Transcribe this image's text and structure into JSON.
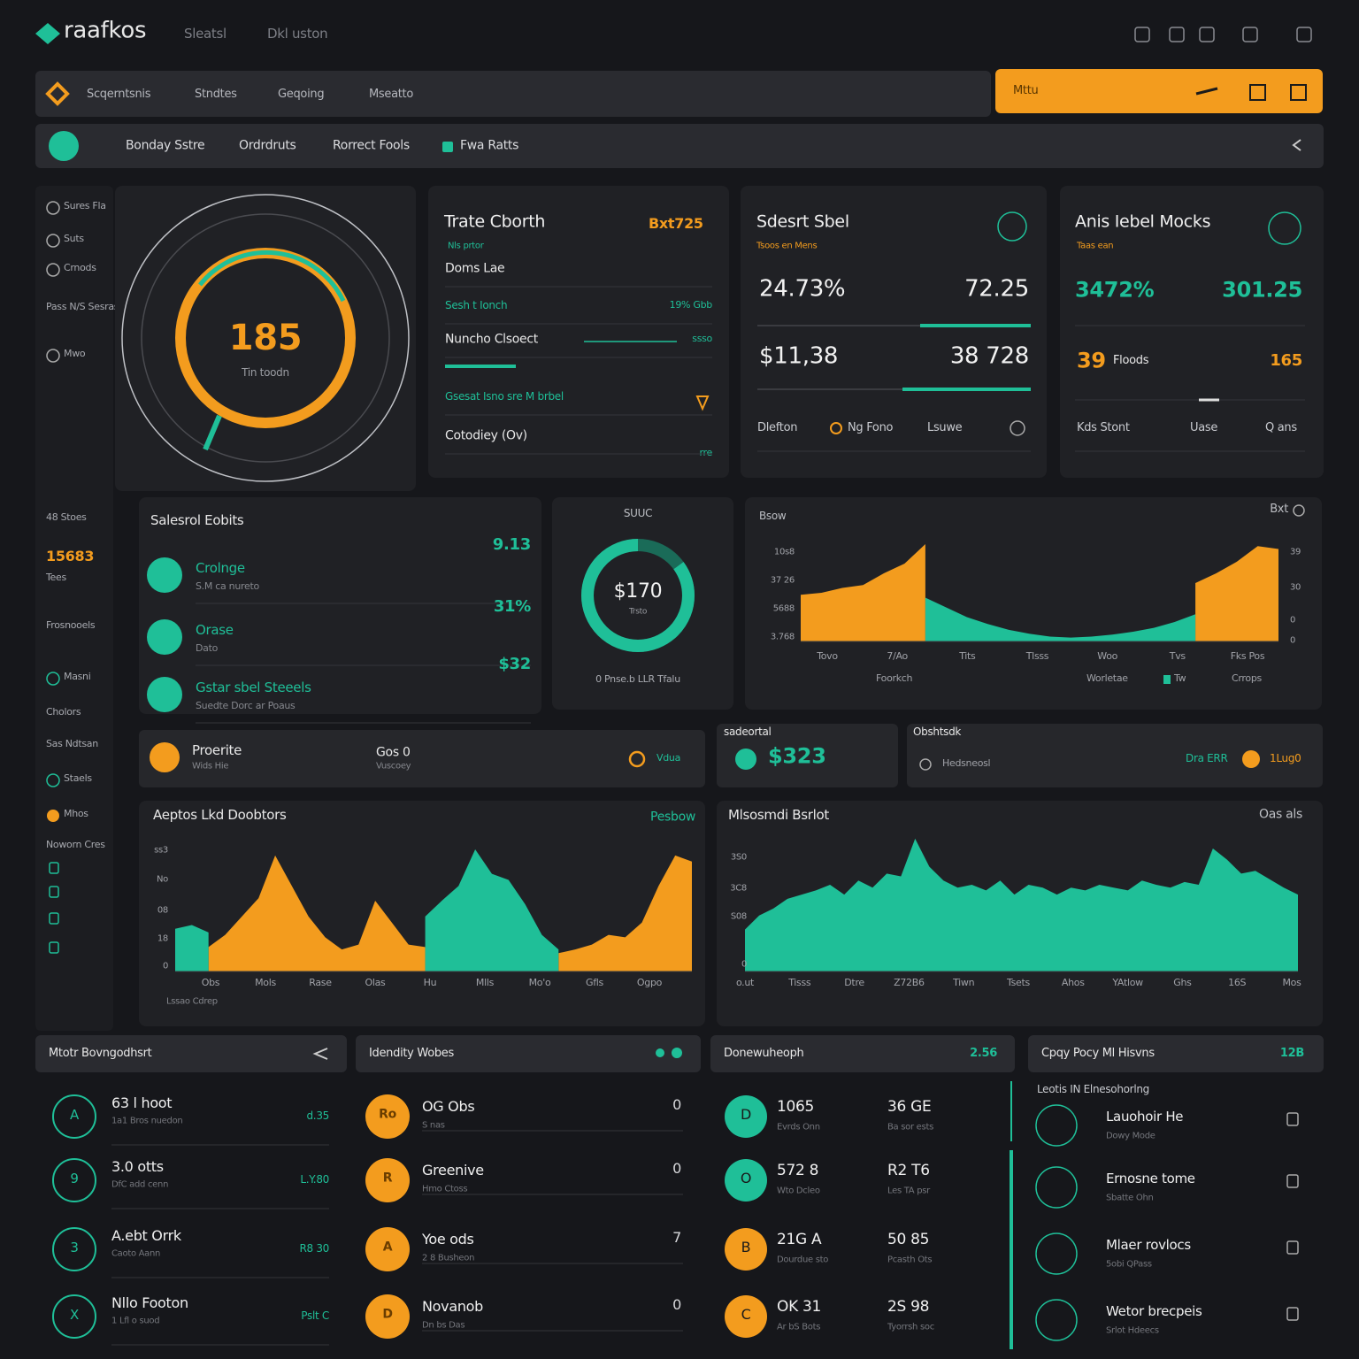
{
  "header": {
    "brand": "raafkos",
    "nav": [
      "Sleatsl",
      "Dkl uston"
    ]
  },
  "toolbar": {
    "items": [
      "Scqerntsnis",
      "Stndtes",
      "Geqoing",
      "Mseatto"
    ],
    "highlight": "Mttu"
  },
  "subnav": {
    "items": [
      "Bonday Sstre",
      "Ordrdruts",
      "Rorrect Fools",
      "Fwa Ratts"
    ]
  },
  "sidebar": {
    "items": [
      "Sures Fla",
      "Suts",
      "Crnods",
      "Pass N/S Sesras",
      "Mwo",
      "48 Stoes",
      "15683",
      "Tees",
      "Frosnooels",
      "Masni",
      "Cholors",
      "Sas Ndtsan",
      "Staels",
      "Mhos",
      "Noworn Cres"
    ]
  },
  "gauge": {
    "value": "185",
    "caption": "Tin toodn"
  },
  "trade_card": {
    "title": "Trate Cborth",
    "badge": "Bxt725",
    "subtitle": "Nls prtor",
    "rows": [
      {
        "label": "Doms Lae"
      },
      {
        "label": "Sesh t Ionch",
        "value": "19% Gbb"
      },
      {
        "label": "Nuncho Clsoect",
        "value": "ssso"
      },
      {
        "label": "Gsesat Isno sre M brbel"
      },
      {
        "label": "Cotodiey (Ov)",
        "value": "rre"
      }
    ]
  },
  "select_card": {
    "title": "Sdesrt Sbel",
    "subtitle": "Tsoos en Mens",
    "metrics": [
      [
        "24.73%",
        "72.25"
      ],
      [
        "$11,38",
        "38 728"
      ]
    ],
    "footer": [
      "Dlefton",
      "Ng Fono",
      "Lsuwe"
    ]
  },
  "mocks_card": {
    "title": "Anis Iebel Mocks",
    "subtitle": "Taas ean",
    "metrics": [
      "3472%",
      "301.25"
    ],
    "row": [
      "39",
      "Floods",
      "165"
    ],
    "footer": [
      "Kds Stont",
      "Uase",
      "Q ans"
    ]
  },
  "sales": {
    "title": "Salesrol Eobits",
    "items": [
      {
        "label": "Crolnge",
        "sub": "S.M ca nureto",
        "value": "9.13"
      },
      {
        "label": "Orase",
        "sub": "Dato",
        "value": "31%"
      },
      {
        "label": "Gstar sbel Steeels",
        "sub": "Suedte Dorc ar Poaus",
        "value": "$32"
      }
    ]
  },
  "donut": {
    "title": "SUUC",
    "center": "$170",
    "sub": "Trsto",
    "foot": "0 Pnse.b LLR Tfalu",
    "ring_value": 85,
    "ring_lim": [
      0,
      100
    ]
  },
  "chart_a": {
    "type": "area",
    "title": "Bsow",
    "corner": "Bxt",
    "y_labels": [
      "10s8",
      "37 26",
      "5688",
      "3.768"
    ],
    "right_labels": [
      "39",
      "30",
      "0",
      "0"
    ],
    "x_labels": [
      "Tovo",
      "7/Ao",
      "Tits",
      "Tlsss",
      "Woo",
      "Tvs",
      "Fks Pos"
    ],
    "legend": [
      "Foorkch",
      "Worletae",
      "Tw",
      "Crrops"
    ],
    "ylim": [
      0,
      100
    ],
    "series": [
      {
        "color": "#f39c1e",
        "values": [
          48,
          50,
          55,
          58,
          70,
          80,
          100,
          null,
          null,
          null,
          null,
          null,
          null,
          null,
          null,
          null,
          null,
          null,
          null,
          60,
          70,
          82,
          98,
          95
        ]
      },
      {
        "color": "#1fbf98",
        "values": [
          null,
          null,
          null,
          null,
          null,
          null,
          45,
          35,
          25,
          18,
          12,
          8,
          5,
          4,
          5,
          7,
          10,
          14,
          20,
          28,
          null,
          null,
          null,
          null
        ]
      }
    ]
  },
  "strip": {
    "left": {
      "title": "Proerite",
      "sub": "Wids Hie",
      "mid": "Gos 0",
      "mid_sub": "Vuscoey",
      "right": "Vdua"
    },
    "mid": {
      "title": "sadeortal",
      "value": "$323"
    },
    "right": {
      "title": "Obshtsdk",
      "sub": "Hedsneosl",
      "a": "Dra ERR",
      "b": "1Lug0"
    }
  },
  "chart_b": {
    "type": "area",
    "title": "Aeptos Lkd Doobtors",
    "corner": "Pesbow",
    "y_labels": [
      "ss3",
      "No",
      "08",
      "18",
      "0"
    ],
    "x_labels": [
      "Obs",
      "Mols",
      "Rase",
      "Olas",
      "Hu",
      "Mlls",
      "Mo'o",
      "Gfls",
      "Ogpo"
    ],
    "footer": "Lssao Cdrep",
    "ylim": [
      0,
      100
    ],
    "series": [
      {
        "color": "#f39c1e",
        "values": [
          null,
          null,
          20,
          30,
          45,
          60,
          95,
          70,
          45,
          28,
          18,
          22,
          58,
          40,
          22,
          20,
          null,
          null,
          null,
          null,
          null,
          null,
          null,
          15,
          18,
          22,
          30,
          28,
          40,
          70,
          95,
          90
        ]
      },
      {
        "color": "#1fbf98",
        "values": [
          35,
          38,
          32,
          null,
          null,
          null,
          null,
          null,
          null,
          null,
          null,
          null,
          null,
          null,
          null,
          45,
          58,
          70,
          100,
          80,
          75,
          55,
          30,
          18,
          null,
          null,
          null,
          null,
          null,
          null,
          null,
          null
        ]
      }
    ]
  },
  "chart_c": {
    "type": "area",
    "title": "Mlsosmdi Bsrlot",
    "corner": "Oas als",
    "y_labels": [
      "3S0",
      "3C8",
      "S08",
      "0"
    ],
    "x_labels": [
      "o.ut",
      "Tisss",
      "Dtre",
      "Z72B6",
      "Tiwn",
      "Tsets",
      "Ahos",
      "YAtlow",
      "Ghs",
      "16S",
      "Mos"
    ],
    "ylim": [
      0,
      100
    ],
    "series": [
      {
        "color": "#1fbf98",
        "values": [
          30,
          40,
          45,
          52,
          55,
          58,
          62,
          55,
          65,
          60,
          70,
          68,
          95,
          75,
          65,
          60,
          62,
          58,
          65,
          55,
          62,
          60,
          55,
          60,
          58,
          62,
          60,
          58,
          65,
          62,
          60,
          64,
          62,
          88,
          80,
          70,
          72,
          66,
          60,
          55
        ]
      }
    ]
  },
  "list_1": {
    "title": "Mtotr Bovngodhsrt",
    "items": [
      {
        "icon": "A",
        "label": "63 l hoot",
        "sub": "1a1 Bros nuedon",
        "value": "d.35"
      },
      {
        "icon": "9",
        "label": "3.0 otts",
        "sub": "DfC add cenn",
        "value": "L.Y.80"
      },
      {
        "icon": "3",
        "label": "A.ebt Orrk",
        "sub": "Caoto Aann",
        "value": "R8 30"
      },
      {
        "icon": "X",
        "label": "Nllo Footon",
        "sub": "1 Lfl o suod",
        "value": "Pslt C"
      }
    ]
  },
  "list_2": {
    "title": "Idendity Wobes",
    "items": [
      {
        "icon": "Ro",
        "label": "OG Obs",
        "sub": "S nas",
        "value": "0"
      },
      {
        "icon": "R",
        "label": "Greenive",
        "sub": "Hmo Ctoss",
        "value": "0"
      },
      {
        "icon": "A",
        "label": "Yoe ods",
        "sub": "2 8 Busheon",
        "value": "7"
      },
      {
        "icon": "D",
        "label": "Novanob",
        "sub": "Dn bs Das",
        "value": "0"
      }
    ]
  },
  "list_3": {
    "title": "Donewuheoph",
    "badge": "2.56",
    "items": [
      {
        "icon": "D",
        "a": "1065",
        "a_sub": "Evrds Onn",
        "b": "36 GE",
        "b_sub": "Ba sor ests"
      },
      {
        "icon": "O",
        "a": "572 8",
        "a_sub": "Wto Dcleo",
        "b": "R2 T6",
        "b_sub": "Les TA psr"
      },
      {
        "icon": "B",
        "a": "21G A",
        "a_sub": "Dourdue sto",
        "b": "50 85",
        "b_sub": "Pcasth Ots"
      },
      {
        "icon": "C",
        "a": "OK 31",
        "a_sub": "Ar bS Bots",
        "b": "2S 98",
        "b_sub": "Tyorrsh soc"
      }
    ]
  },
  "list_4": {
    "title": "Cpqy Pocy Ml Hisvns",
    "badge": "12B",
    "subtitle": "Leotis IN Elnesohorlng",
    "items": [
      {
        "label": "Lauohoir He",
        "sub": "Dowy Mode"
      },
      {
        "label": "Ernosne tome",
        "sub": "Sbatte Ohn"
      },
      {
        "label": "Mlaer rovlocs",
        "sub": "5obi QPass"
      },
      {
        "label": "Wetor brecpeis",
        "sub": "Srlot Hdeecs"
      }
    ]
  }
}
